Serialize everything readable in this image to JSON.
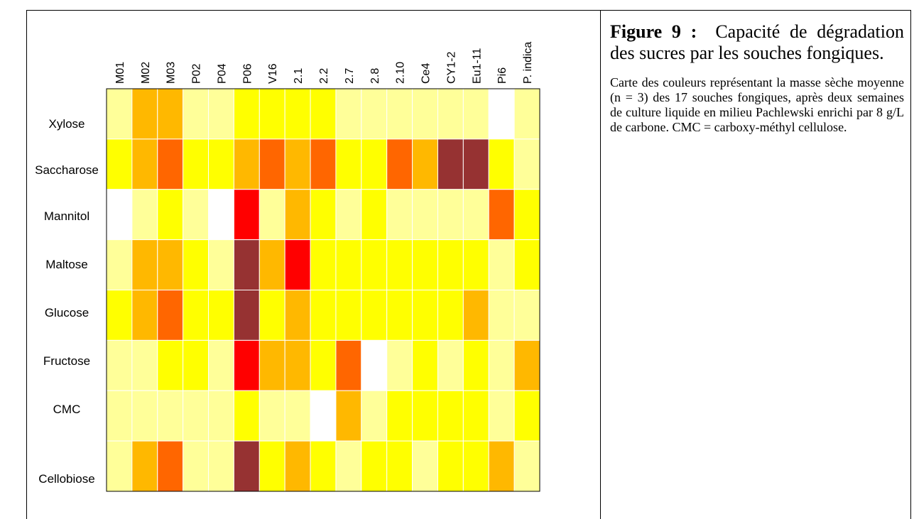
{
  "chart_data": {
    "type": "heatmap",
    "columns": [
      "M01",
      "M02",
      "M03",
      "P02",
      "P04",
      "P06",
      "V16",
      "2.1",
      "2.2",
      "2.7",
      "2.8",
      "2.10",
      "Ce4",
      "CY1-2",
      "Eu1-11",
      "Pi6",
      "P. indica"
    ],
    "rows": [
      "Xylose",
      "Saccharose",
      "Mannitol",
      "Maltose",
      "Glucose",
      "Fructose",
      "CMC",
      "Cellobiose"
    ],
    "cells": [
      [
        "#ffff99",
        "#ffb800",
        "#ffb800",
        "#ffff99",
        "#ffff99",
        "#ffff00",
        "#ffff00",
        "#ffff00",
        "#ffff00",
        "#ffff99",
        "#ffff99",
        "#ffff99",
        "#ffff99",
        "#ffff99",
        "#ffff99",
        "#ffffff",
        "#ffff99"
      ],
      [
        "#ffff00",
        "#ffb800",
        "#ff6600",
        "#ffff00",
        "#ffff00",
        "#ffb800",
        "#ff6600",
        "#ffb800",
        "#ff6600",
        "#ffff00",
        "#ffff00",
        "#ff6600",
        "#ffb800",
        "#963232",
        "#963232",
        "#ffff00",
        "#ffff99"
      ],
      [
        "#ffffff",
        "#ffff99",
        "#ffff00",
        "#ffff99",
        "#ffffff",
        "#ff0000",
        "#ffff99",
        "#ffb800",
        "#ffff00",
        "#ffff99",
        "#ffff00",
        "#ffff99",
        "#ffff99",
        "#ffff99",
        "#ffff99",
        "#ff6600",
        "#ffff00"
      ],
      [
        "#ffff99",
        "#ffb800",
        "#ffb800",
        "#ffff00",
        "#ffff99",
        "#963232",
        "#ffb800",
        "#ff0000",
        "#ffff00",
        "#ffff00",
        "#ffff00",
        "#ffff00",
        "#ffff00",
        "#ffff00",
        "#ffff00",
        "#ffff99",
        "#ffff00"
      ],
      [
        "#ffff00",
        "#ffb800",
        "#ff6600",
        "#ffff00",
        "#ffff00",
        "#963232",
        "#ffff00",
        "#ffb800",
        "#ffff00",
        "#ffff00",
        "#ffff00",
        "#ffff00",
        "#ffff00",
        "#ffff00",
        "#ffb800",
        "#ffff99",
        "#ffff99"
      ],
      [
        "#ffff99",
        "#ffff99",
        "#ffff00",
        "#ffff00",
        "#ffff99",
        "#ff0000",
        "#ffb800",
        "#ffb800",
        "#ffff00",
        "#ff6600",
        "#ffffff",
        "#ffff99",
        "#ffff00",
        "#ffff99",
        "#ffff00",
        "#ffff99",
        "#ffb800"
      ],
      [
        "#ffff99",
        "#ffff99",
        "#ffff99",
        "#ffff99",
        "#ffff99",
        "#ffff00",
        "#ffff99",
        "#ffff99",
        "#ffffff",
        "#ffb800",
        "#ffff99",
        "#ffff00",
        "#ffff00",
        "#ffff00",
        "#ffff00",
        "#ffff99",
        "#ffff00"
      ],
      [
        "#ffff99",
        "#ffb800",
        "#ff6600",
        "#ffff99",
        "#ffff99",
        "#963232",
        "#ffff00",
        "#ffb800",
        "#ffff00",
        "#ffff99",
        "#ffff00",
        "#ffff00",
        "#ffff99",
        "#ffff00",
        "#ffff00",
        "#ffb800",
        "#ffff99"
      ]
    ]
  },
  "caption": {
    "label": "Figure 9 :",
    "title": "Capacité de dégradation des sucres par les souches fongiques.",
    "text": "Carte des couleurs représentant la masse sèche moyenne (n = 3) des 17 souches fongiques, après deux semaines de culture liquide en milieu Pachlewski enrichi par 8 g/L de carbone. CMC = carboxy-méthyl cellulose."
  }
}
